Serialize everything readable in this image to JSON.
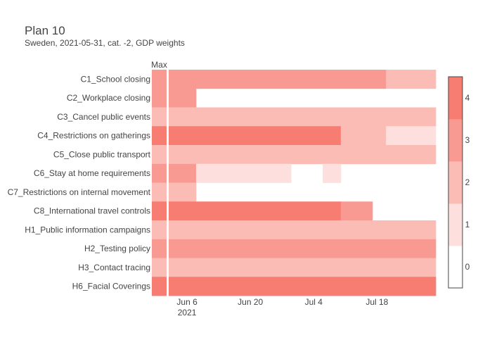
{
  "title": "Plan 10",
  "subtitle": "Sweden, 2021-05-31, cat. -2, GDP weights",
  "chart_data": {
    "type": "heatmap",
    "max_column_label": "Max",
    "rows": [
      "C1_School closing",
      "C2_Workplace closing",
      "C3_Cancel public events",
      "C4_Restrictions on gatherings",
      "C5_Close public transport",
      "C6_Stay at home requirements",
      "C7_Restrictions on internal movement",
      "C8_International travel controls",
      "H1_Public information campaigns",
      "H2_Testing policy",
      "H3_Contact tracing",
      "H6_Facial Coverings"
    ],
    "x_range": [
      "2021-05-31",
      "2021-07-31"
    ],
    "x_ticks": [
      {
        "date": "2021-06-06",
        "label": "Jun 6",
        "sublabel": "2021"
      },
      {
        "date": "2021-06-20",
        "label": "Jun 20",
        "sublabel": ""
      },
      {
        "date": "2021-07-04",
        "label": "Jul 4",
        "sublabel": ""
      },
      {
        "date": "2021-07-18",
        "label": "Jul 18",
        "sublabel": ""
      }
    ],
    "max_values": [
      3,
      3,
      2,
      4,
      2,
      3,
      2,
      4,
      2,
      3,
      2,
      4
    ],
    "segments": [
      [
        {
          "start": "2021-06-01",
          "end": "2021-07-20",
          "value": 3
        },
        {
          "start": "2021-07-20",
          "end": "2021-08-01",
          "value": 2
        }
      ],
      [
        {
          "start": "2021-06-01",
          "end": "2021-06-08",
          "value": 3
        }
      ],
      [
        {
          "start": "2021-06-01",
          "end": "2021-08-01",
          "value": 2
        }
      ],
      [
        {
          "start": "2021-06-01",
          "end": "2021-07-10",
          "value": 4
        },
        {
          "start": "2021-07-10",
          "end": "2021-07-20",
          "value": 2
        },
        {
          "start": "2021-07-20",
          "end": "2021-08-01",
          "value": 1
        }
      ],
      [
        {
          "start": "2021-06-01",
          "end": "2021-08-01",
          "value": 2
        }
      ],
      [
        {
          "start": "2021-06-01",
          "end": "2021-06-08",
          "value": 3
        },
        {
          "start": "2021-06-08",
          "end": "2021-06-29",
          "value": 1
        },
        {
          "start": "2021-07-06",
          "end": "2021-07-10",
          "value": 1
        }
      ],
      [
        {
          "start": "2021-06-01",
          "end": "2021-06-08",
          "value": 2
        }
      ],
      [
        {
          "start": "2021-06-01",
          "end": "2021-07-10",
          "value": 4
        },
        {
          "start": "2021-07-10",
          "end": "2021-07-17",
          "value": 3
        }
      ],
      [
        {
          "start": "2021-06-01",
          "end": "2021-08-01",
          "value": 2
        }
      ],
      [
        {
          "start": "2021-06-01",
          "end": "2021-08-01",
          "value": 3
        }
      ],
      [
        {
          "start": "2021-06-01",
          "end": "2021-08-01",
          "value": 2
        }
      ],
      [
        {
          "start": "2021-06-01",
          "end": "2021-08-01",
          "value": 4
        }
      ]
    ],
    "colorscale": {
      "0": "#ffffff",
      "1": "#fde0de",
      "2": "#fcbcb6",
      "3": "#f99a92",
      "4": "#f77c72"
    },
    "colorbar": {
      "range": [
        -0.5,
        4.5
      ],
      "ticks": [
        0,
        1,
        2,
        3,
        4
      ]
    }
  }
}
